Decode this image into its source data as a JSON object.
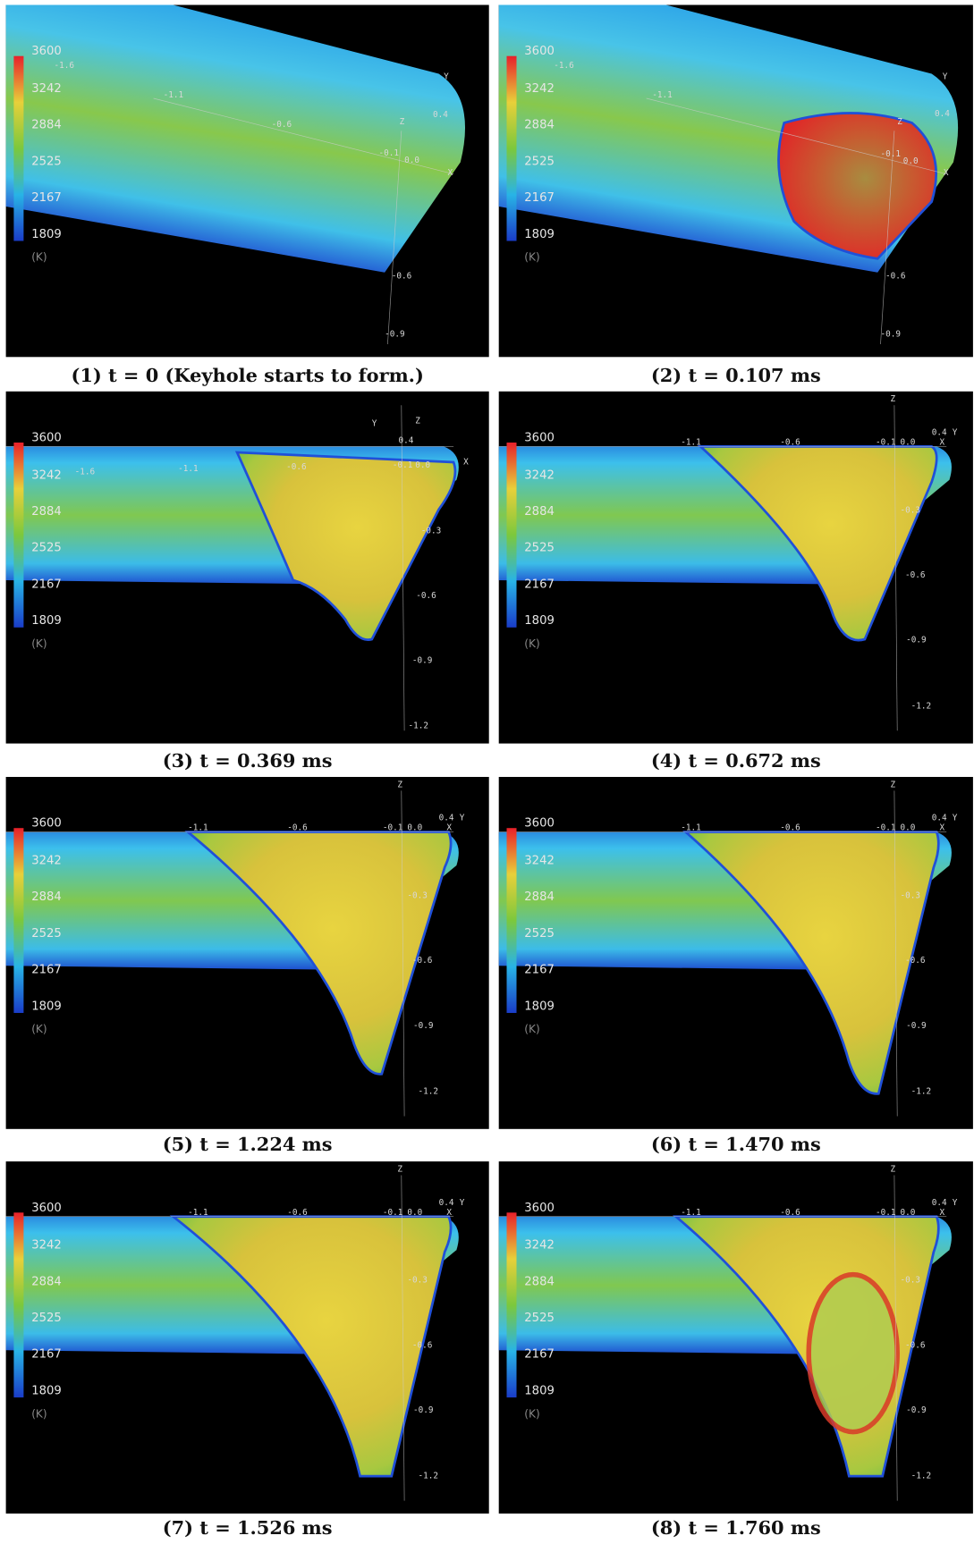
{
  "figure": {
    "colorbar": {
      "ticks": [
        3600,
        3242,
        2884,
        2525,
        2167,
        1809
      ],
      "unit": "(K)"
    },
    "panels": [
      {
        "caption": "(1) t = 0 (Keyhole starts to form.)",
        "axis_labels": [
          "-1.6",
          "-1.1",
          "-0.6",
          "Y",
          "Z",
          "0.4",
          "-0.1",
          "0.0",
          "X",
          "-0.6",
          "-0.9"
        ]
      },
      {
        "caption": "(2) t = 0.107 ms",
        "axis_labels": [
          "-1.6",
          "-1.1",
          "Y",
          "Z",
          "0.4",
          "-0.1",
          "0.0",
          "X",
          "-0.6",
          "-0.9"
        ]
      },
      {
        "caption": "(3) t = 0.369 ms",
        "axis_labels": [
          "Y",
          "Z",
          "0.4",
          "-1.6",
          "-1.1",
          "-0.6",
          "-0.1",
          "0.0",
          "X",
          "-0.3",
          "-0.6",
          "-0.9",
          "-1.2"
        ]
      },
      {
        "caption": "(4) t = 0.672 ms",
        "axis_labels": [
          "Z",
          "-1.1",
          "-0.6",
          "-0.1",
          "0.0",
          "0.4",
          "X",
          "Y",
          "-0.3",
          "-0.6",
          "-0.9",
          "-1.2"
        ]
      },
      {
        "caption": "(5) t = 1.224 ms",
        "axis_labels": [
          "Z",
          "-1.1",
          "-0.6",
          "-0.1",
          "0.0",
          "0.4",
          "X",
          "Y",
          "-0.3",
          "-0.6",
          "-0.9",
          "-1.2"
        ]
      },
      {
        "caption": "(6) t = 1.470 ms",
        "axis_labels": [
          "Z",
          "-1.1",
          "-0.6",
          "-0.1",
          "0.0",
          "0.4",
          "X",
          "Y",
          "-0.3",
          "-0.6",
          "-0.9",
          "-1.2"
        ]
      },
      {
        "caption": "(7) t = 1.526 ms",
        "axis_labels": [
          "Z",
          "-1.1",
          "-0.6",
          "-0.1",
          "0.0",
          "0.4",
          "X",
          "Y",
          "-0.3",
          "-0.6",
          "-0.9",
          "-1.2"
        ]
      },
      {
        "caption": "(8) t = 1.760 ms",
        "axis_labels": [
          "Z",
          "-1.1",
          "-0.6",
          "-0.1",
          "0.0",
          "0.4",
          "X",
          "Y",
          "-0.3",
          "-0.6",
          "-0.9",
          "-1.2"
        ]
      }
    ]
  }
}
